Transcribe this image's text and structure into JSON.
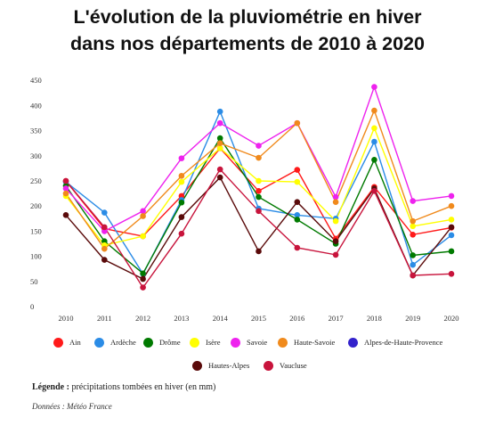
{
  "chart_data": {
    "type": "line",
    "title_lines": [
      "L'évolution de la pluviométrie en hiver",
      "dans nos départements de 2010 à 2020"
    ],
    "xlabel": "",
    "ylabel": "",
    "x": [
      "2010",
      "2011",
      "2012",
      "2013",
      "2014",
      "2015",
      "2016",
      "2017",
      "2018",
      "2019",
      "2020"
    ],
    "y_ticks": [
      0,
      50,
      100,
      150,
      200,
      250,
      300,
      350,
      400,
      450
    ],
    "ylim": [
      0,
      450
    ],
    "grid": false,
    "legend_position": "bottom",
    "series": [
      {
        "name": "Ain",
        "color": "#ff1a1a",
        "values": [
          250,
          155,
          140,
          220,
          315,
          230,
          272,
          135,
          238,
          143,
          157
        ]
      },
      {
        "name": "Ardèche",
        "color": "#2b8ce6",
        "values": [
          248,
          187,
          65,
          212,
          388,
          195,
          182,
          175,
          328,
          83,
          142
        ]
      },
      {
        "name": "Drôme",
        "color": "#007a00",
        "values": [
          240,
          130,
          66,
          207,
          335,
          218,
          173,
          125,
          292,
          102,
          110
        ]
      },
      {
        "name": "Isère",
        "color": "#ffff00",
        "values": [
          220,
          122,
          140,
          248,
          315,
          250,
          248,
          170,
          355,
          160,
          173
        ]
      },
      {
        "name": "Savoie",
        "color": "#ee22ee",
        "values": [
          235,
          150,
          190,
          295,
          365,
          320,
          365,
          218,
          437,
          210,
          220
        ]
      },
      {
        "name": "Haute-Savoie",
        "color": "#f08a1c",
        "values": [
          225,
          115,
          180,
          260,
          325,
          296,
          365,
          208,
          390,
          170,
          200
        ]
      },
      {
        "name": "Alpes-de-Haute-Provence",
        "color": "#3322cc",
        "values": [
          null,
          null,
          null,
          null,
          null,
          null,
          null,
          null,
          null,
          null,
          null
        ]
      },
      {
        "name": "Hautes-Alpes",
        "color": "#5a0a0a",
        "values": [
          182,
          93,
          55,
          178,
          257,
          110,
          208,
          130,
          235,
          62,
          158
        ]
      },
      {
        "name": "Vaucluse",
        "color": "#c8143c",
        "values": [
          250,
          158,
          38,
          145,
          273,
          190,
          117,
          103,
          230,
          62,
          65
        ]
      }
    ]
  },
  "caption": {
    "label": "Légende :",
    "text": "précipitations tombées en hiver (en mm)"
  },
  "source": "Données : Météo France"
}
